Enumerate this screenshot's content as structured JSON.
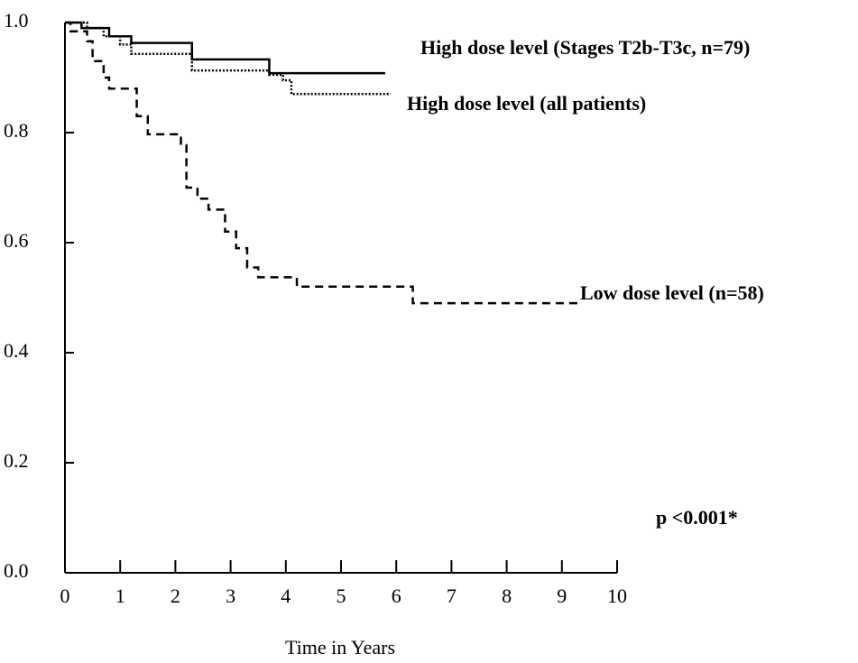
{
  "chart_data": {
    "type": "step",
    "x_label": "Time in Years",
    "annotation": "p <0.001*",
    "xlim": [
      0,
      10
    ],
    "xticks": [
      0,
      1,
      2,
      3,
      4,
      5,
      6,
      7,
      8,
      9,
      10
    ],
    "ylim": [
      0,
      1
    ],
    "yticks": [
      {
        "value": 0,
        "label": "0.0"
      },
      0.2,
      0.4,
      0.6,
      0.8,
      {
        "value": 1,
        "label": "1.0"
      }
    ],
    "series": [
      {
        "name": "High dose level (Stages T2b-T3c, n=79)",
        "color": "#000000",
        "style": "solid",
        "x": [
          0,
          0.3,
          0.8,
          1.2,
          2.3,
          3.7,
          5.8
        ],
        "values": [
          1.0,
          0.99,
          0.975,
          0.963,
          0.933,
          0.908,
          0.908
        ]
      },
      {
        "name": "High dose level (all patients)",
        "color": "#000000",
        "style": "dotted",
        "x": [
          0,
          0.4,
          0.7,
          1.0,
          1.2,
          2.3,
          3.7,
          3.95,
          4.1,
          5.9
        ],
        "values": [
          1.0,
          0.99,
          0.975,
          0.96,
          0.943,
          0.913,
          0.905,
          0.895,
          0.87,
          0.87
        ]
      },
      {
        "name": "Low dose level (n=58)",
        "color": "#000000",
        "style": "dashed",
        "x": [
          0,
          0.1,
          0.4,
          0.5,
          0.7,
          0.8,
          1.3,
          1.5,
          2.1,
          2.2,
          2.4,
          2.6,
          2.9,
          3.1,
          3.3,
          3.5,
          4.2,
          6.3,
          9.3
        ],
        "values": [
          1.0,
          0.984,
          0.966,
          0.93,
          0.9,
          0.88,
          0.83,
          0.797,
          0.777,
          0.7,
          0.68,
          0.66,
          0.62,
          0.59,
          0.555,
          0.537,
          0.52,
          0.49,
          0.49
        ]
      }
    ]
  }
}
